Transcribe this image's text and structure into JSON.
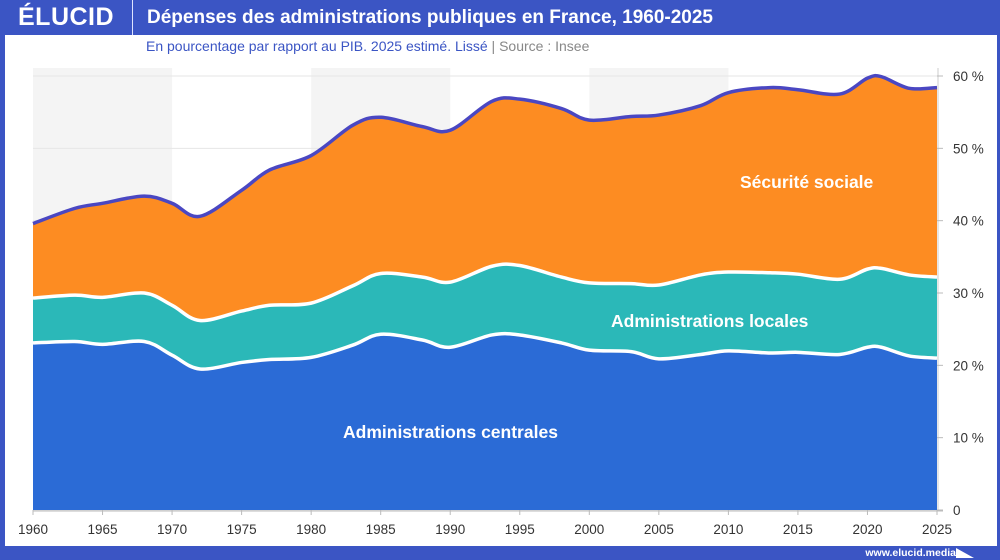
{
  "header": {
    "logo": "ÉLUCID",
    "title": "Dépenses des administrations publiques en France, 1960-2025"
  },
  "subtitle": {
    "text": "En pourcentage par rapport au PIB. 2025 estimé. Lissé",
    "separator": "|",
    "source": "Source : Insee"
  },
  "footer": {
    "url": "www.elucid.media"
  },
  "chart_data": {
    "type": "area",
    "stacked": true,
    "smoothed": true,
    "x": [
      1960,
      1963,
      1965,
      1968,
      1970,
      1972,
      1975,
      1977,
      1980,
      1983,
      1985,
      1988,
      1990,
      1993,
      1995,
      1998,
      2000,
      2003,
      2005,
      2008,
      2010,
      2013,
      2015,
      2018,
      2020,
      2021,
      2023,
      2025
    ],
    "series": [
      {
        "name": "Administrations centrales",
        "color": "#2b6bd6",
        "values": [
          23.1,
          23.3,
          22.9,
          23.3,
          21.4,
          19.5,
          20.4,
          20.8,
          21.1,
          22.8,
          24.3,
          23.5,
          22.5,
          24.2,
          24.2,
          23.1,
          22.1,
          21.9,
          20.9,
          21.5,
          22.0,
          21.7,
          21.8,
          21.5,
          22.5,
          22.5,
          21.3,
          21.0
        ]
      },
      {
        "name": "Administrations locales",
        "color": "#2bb8b8",
        "values": [
          6.2,
          6.4,
          6.5,
          6.7,
          6.9,
          6.7,
          7.1,
          7.5,
          7.5,
          8.2,
          8.4,
          8.7,
          9.0,
          9.5,
          9.6,
          9.1,
          9.3,
          9.4,
          10.2,
          11.0,
          10.9,
          11.1,
          10.8,
          10.4,
          10.8,
          10.9,
          11.2,
          11.2
        ]
      },
      {
        "name": "Sécurité sociale",
        "color": "#fd8c22",
        "values": [
          10.3,
          12.0,
          13.0,
          13.4,
          14.1,
          14.4,
          16.7,
          18.7,
          20.4,
          22.2,
          21.6,
          20.8,
          21.0,
          22.8,
          23.0,
          23.3,
          22.5,
          23.1,
          23.5,
          23.4,
          24.8,
          25.6,
          25.5,
          25.6,
          26.4,
          26.5,
          25.8,
          26.2
        ]
      }
    ],
    "total_line_color": "#4a47c2",
    "xlim": [
      1960,
      2025
    ],
    "ylim": [
      0,
      60
    ],
    "x_ticks": [
      "1960",
      "1965",
      "1970",
      "1975",
      "1980",
      "1985",
      "1990",
      "1995",
      "2000",
      "2005",
      "2010",
      "2015",
      "2020",
      "2025"
    ],
    "y_ticks": [
      "0",
      "10 %",
      "20 %",
      "30 %",
      "40 %",
      "50 %",
      "60 %"
    ],
    "y_axis_position": "right",
    "shaded_decades": [
      [
        1960,
        1970
      ],
      [
        1980,
        1990
      ],
      [
        2000,
        2010
      ]
    ]
  }
}
